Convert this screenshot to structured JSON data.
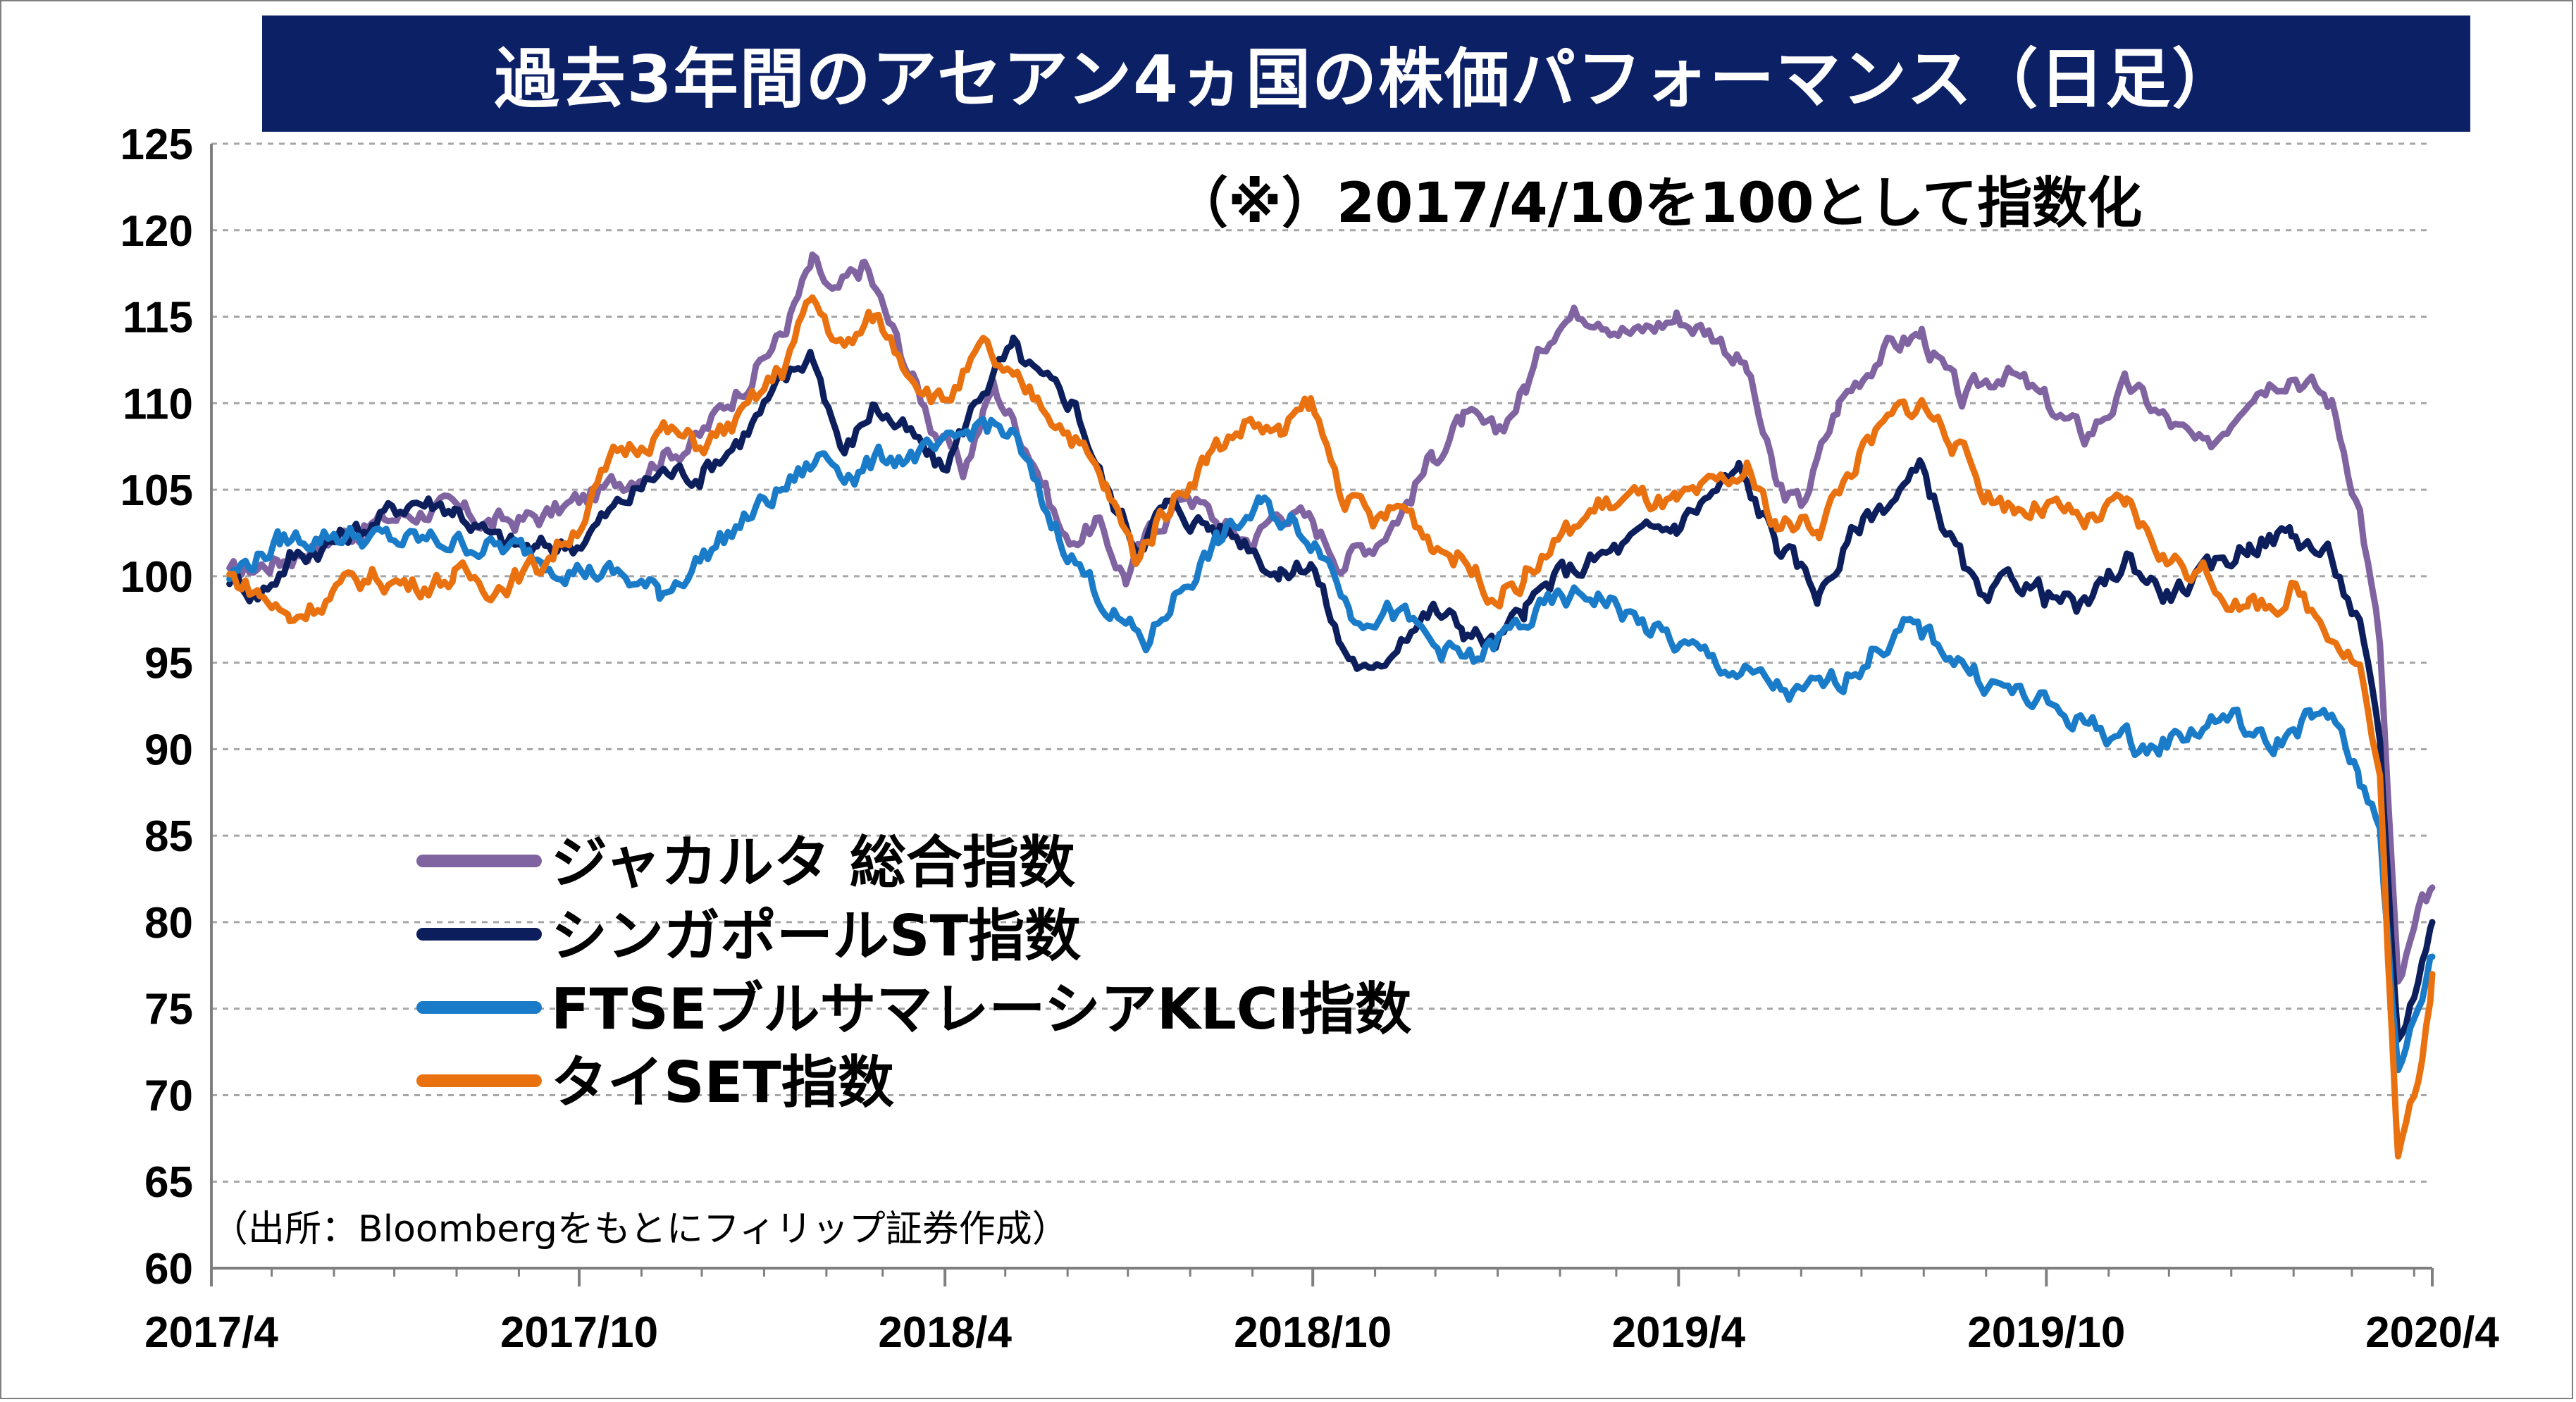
{
  "chart_data": {
    "type": "line",
    "title": "過去3年間のアセアン4ヵ国の株価パフォーマンス（日足）",
    "note": "（※）2017/4/10を100として指数化",
    "source": "（出所：Bloombergをもとにフィリップ証券作成）",
    "x_range": [
      "2017/4",
      "2020/4"
    ],
    "x_ticks": [
      "2017/4",
      "2017/10",
      "2018/4",
      "2018/10",
      "2019/4",
      "2019/10",
      "2020/4"
    ],
    "ylim": [
      60,
      125
    ],
    "y_ticks": [
      60,
      65,
      70,
      75,
      80,
      85,
      90,
      95,
      100,
      105,
      110,
      115,
      120,
      125
    ],
    "grid": "horizontal dashed",
    "legend_position": "lower-left",
    "series": [
      {
        "name": "ジャカルタ 総合指数",
        "color": "#8064a2",
        "points": [
          [
            "2017/4/10",
            100
          ],
          [
            "2017/5/5",
            101
          ],
          [
            "2017/5/25",
            102
          ],
          [
            "2017/6/20",
            103
          ],
          [
            "2017/7/20",
            104
          ],
          [
            "2017/8/20",
            103
          ],
          [
            "2017/9/15",
            103.5
          ],
          [
            "2017/10/15",
            105
          ],
          [
            "2017/11/10",
            107
          ],
          [
            "2017/11/30",
            108
          ],
          [
            "2017/12/20",
            111
          ],
          [
            "2018/1/10",
            114
          ],
          [
            "2018/1/25",
            118
          ],
          [
            "2018/2/5",
            116
          ],
          [
            "2018/2/20",
            118
          ],
          [
            "2018/3/10",
            113
          ],
          [
            "2018/3/25",
            109
          ],
          [
            "2018/4/10",
            106
          ],
          [
            "2018/4/25",
            111
          ],
          [
            "2018/5/15",
            107
          ],
          [
            "2018/5/31",
            102
          ],
          [
            "2018/6/15",
            103
          ],
          [
            "2018/6/30",
            100
          ],
          [
            "2018/7/15",
            103
          ],
          [
            "2018/7/31",
            105
          ],
          [
            "2018/8/15",
            103
          ],
          [
            "2018/9/1",
            102
          ],
          [
            "2018/9/15",
            104
          ],
          [
            "2018/10/1",
            103
          ],
          [
            "2018/10/15",
            101
          ],
          [
            "2018/10/31",
            102
          ],
          [
            "2018/11/15",
            104
          ],
          [
            "2018/11/30",
            107
          ],
          [
            "2018/12/15",
            109
          ],
          [
            "2018/12/31",
            108
          ],
          [
            "2019/1/15",
            111
          ],
          [
            "2019/1/31",
            115
          ],
          [
            "2019/2/20",
            115.5
          ],
          [
            "2019/3/10",
            114
          ],
          [
            "2019/3/31",
            115
          ],
          [
            "2019/4/20",
            114
          ],
          [
            "2019/5/5",
            112
          ],
          [
            "2019/5/20",
            105
          ],
          [
            "2019/6/1",
            104
          ],
          [
            "2019/6/20",
            110
          ],
          [
            "2019/7/10",
            113
          ],
          [
            "2019/7/31",
            114
          ],
          [
            "2019/8/20",
            110
          ],
          [
            "2019/9/10",
            112
          ],
          [
            "2019/9/30",
            110
          ],
          [
            "2019/10/20",
            108
          ],
          [
            "2019/11/10",
            111
          ],
          [
            "2019/11/30",
            109
          ],
          [
            "2019/12/20",
            107
          ],
          [
            "2020/1/10",
            111
          ],
          [
            "2020/1/31",
            112
          ],
          [
            "2020/2/20",
            110
          ],
          [
            "2020/3/5",
            104
          ],
          [
            "2020/3/15",
            96
          ],
          [
            "2020/3/24",
            76
          ],
          [
            "2020/4/3",
            80
          ],
          [
            "2020/4/10",
            82
          ]
        ]
      },
      {
        "name": "シンガポールST指数",
        "color": "#0c1f5c",
        "points": [
          [
            "2017/4/10",
            100
          ],
          [
            "2017/4/25",
            99
          ],
          [
            "2017/5/10",
            101
          ],
          [
            "2017/5/31",
            102
          ],
          [
            "2017/6/20",
            103
          ],
          [
            "2017/7/10",
            104.5
          ],
          [
            "2017/7/31",
            104
          ],
          [
            "2017/8/20",
            102
          ],
          [
            "2017/9/10",
            101.5
          ],
          [
            "2017/9/30",
            102
          ],
          [
            "2017/10/20",
            104
          ],
          [
            "2017/11/10",
            106
          ],
          [
            "2017/11/30",
            106
          ],
          [
            "2017/12/20",
            108
          ],
          [
            "2018/1/10",
            111
          ],
          [
            "2018/1/25",
            113
          ],
          [
            "2018/2/10",
            107
          ],
          [
            "2018/2/25",
            110
          ],
          [
            "2018/3/15",
            108
          ],
          [
            "2018/3/31",
            106
          ],
          [
            "2018/4/20",
            111
          ],
          [
            "2018/5/5",
            113
          ],
          [
            "2018/5/20",
            111
          ],
          [
            "2018/6/5",
            110
          ],
          [
            "2018/6/20",
            105
          ],
          [
            "2018/7/5",
            102
          ],
          [
            "2018/7/20",
            104
          ],
          [
            "2018/8/10",
            103
          ],
          [
            "2018/8/31",
            102
          ],
          [
            "2018/9/15",
            100
          ],
          [
            "2018/9/30",
            101
          ],
          [
            "2018/10/15",
            96
          ],
          [
            "2018/10/31",
            94
          ],
          [
            "2018/11/15",
            97
          ],
          [
            "2018/11/30",
            98
          ],
          [
            "2018/12/15",
            97
          ],
          [
            "2018/12/31",
            96
          ],
          [
            "2019/1/15",
            98
          ],
          [
            "2019/1/31",
            100
          ],
          [
            "2019/2/20",
            101
          ],
          [
            "2019/3/10",
            102
          ],
          [
            "2019/3/31",
            103
          ],
          [
            "2019/4/20",
            105
          ],
          [
            "2019/5/1",
            106
          ],
          [
            "2019/5/20",
            102
          ],
          [
            "2019/6/10",
            99
          ],
          [
            "2019/6/30",
            103
          ],
          [
            "2019/7/20",
            105
          ],
          [
            "2019/7/31",
            106
          ],
          [
            "2019/8/15",
            102
          ],
          [
            "2019/8/31",
            98
          ],
          [
            "2019/9/15",
            100
          ],
          [
            "2019/9/30",
            99
          ],
          [
            "2019/10/20",
            98
          ],
          [
            "2019/11/10",
            101
          ],
          [
            "2019/11/30",
            99
          ],
          [
            "2019/12/20",
            100
          ],
          [
            "2020/1/10",
            102
          ],
          [
            "2020/1/31",
            102.5
          ],
          [
            "2020/2/20",
            101
          ],
          [
            "2020/3/5",
            97
          ],
          [
            "2020/3/15",
            90
          ],
          [
            "2020/3/24",
            73
          ],
          [
            "2020/4/3",
            77
          ],
          [
            "2020/4/10",
            80
          ]
        ]
      },
      {
        "name": "FTSEブルサマレーシアKLCI指数",
        "color": "#1a7cc9",
        "points": [
          [
            "2017/4/10",
            100
          ],
          [
            "2017/5/5",
            102
          ],
          [
            "2017/6/1",
            102.5
          ],
          [
            "2017/7/1",
            102
          ],
          [
            "2017/7/31",
            102
          ],
          [
            "2017/8/31",
            101.5
          ],
          [
            "2017/9/30",
            100.5
          ],
          [
            "2017/10/20",
            100
          ],
          [
            "2017/11/10",
            99
          ],
          [
            "2017/11/30",
            101
          ],
          [
            "2017/12/20",
            103
          ],
          [
            "2018/1/10",
            105
          ],
          [
            "2018/1/31",
            107
          ],
          [
            "2018/2/15",
            106
          ],
          [
            "2018/3/5",
            107
          ],
          [
            "2018/3/31",
            107
          ],
          [
            "2018/4/20",
            109
          ],
          [
            "2018/5/5",
            108
          ],
          [
            "2018/5/20",
            104
          ],
          [
            "2018/6/10",
            100
          ],
          [
            "2018/6/30",
            97
          ],
          [
            "2018/7/10",
            96
          ],
          [
            "2018/7/25",
            99
          ],
          [
            "2018/8/15",
            102
          ],
          [
            "2018/9/5",
            104
          ],
          [
            "2018/9/20",
            103
          ],
          [
            "2018/10/5",
            102
          ],
          [
            "2018/10/20",
            98
          ],
          [
            "2018/11/10",
            98
          ],
          [
            "2018/11/30",
            96
          ],
          [
            "2018/12/20",
            95
          ],
          [
            "2019/1/10",
            97
          ],
          [
            "2019/1/31",
            98.5
          ],
          [
            "2019/2/20",
            99
          ],
          [
            "2019/3/10",
            97.5
          ],
          [
            "2019/3/31",
            96
          ],
          [
            "2019/4/20",
            95
          ],
          [
            "2019/5/10",
            94
          ],
          [
            "2019/5/31",
            93
          ],
          [
            "2019/6/20",
            94
          ],
          [
            "2019/7/10",
            96
          ],
          [
            "2019/7/25",
            97
          ],
          [
            "2019/8/10",
            96
          ],
          [
            "2019/8/31",
            94
          ],
          [
            "2019/9/20",
            93
          ],
          [
            "2019/10/10",
            92
          ],
          [
            "2019/10/31",
            91
          ],
          [
            "2019/11/20",
            90
          ],
          [
            "2019/12/10",
            91
          ],
          [
            "2019/12/31",
            92
          ],
          [
            "2020/1/20",
            90
          ],
          [
            "2020/2/10",
            92
          ],
          [
            "2020/2/25",
            91
          ],
          [
            "2020/3/5",
            88
          ],
          [
            "2020/3/15",
            86
          ],
          [
            "2020/3/24",
            71
          ],
          [
            "2020/4/3",
            75
          ],
          [
            "2020/4/10",
            78
          ]
        ]
      },
      {
        "name": "タイSET指数",
        "color": "#e9710f",
        "points": [
          [
            "2017/4/10",
            100
          ],
          [
            "2017/4/25",
            99
          ],
          [
            "2017/5/10",
            97.5
          ],
          [
            "2017/5/31",
            99
          ],
          [
            "2017/6/20",
            100
          ],
          [
            "2017/7/10",
            99.5
          ],
          [
            "2017/7/31",
            100
          ],
          [
            "2017/8/20",
            99.5
          ],
          [
            "2017/9/10",
            100.5
          ],
          [
            "2017/9/30",
            103
          ],
          [
            "2017/10/20",
            107
          ],
          [
            "2017/11/10",
            108.5
          ],
          [
            "2017/11/30",
            107.5
          ],
          [
            "2017/12/20",
            109
          ],
          [
            "2018/1/10",
            112
          ],
          [
            "2018/1/25",
            116
          ],
          [
            "2018/2/10",
            113
          ],
          [
            "2018/2/25",
            115
          ],
          [
            "2018/3/15",
            112
          ],
          [
            "2018/3/31",
            110
          ],
          [
            "2018/4/20",
            113
          ],
          [
            "2018/5/5",
            111
          ],
          [
            "2018/5/20",
            110
          ],
          [
            "2018/6/5",
            108
          ],
          [
            "2018/6/20",
            105
          ],
          [
            "2018/7/5",
            101
          ],
          [
            "2018/7/20",
            104
          ],
          [
            "2018/8/10",
            107
          ],
          [
            "2018/8/31",
            109
          ],
          [
            "2018/9/15",
            108
          ],
          [
            "2018/9/30",
            110
          ],
          [
            "2018/10/15",
            105
          ],
          [
            "2018/10/31",
            103
          ],
          [
            "2018/11/15",
            104
          ],
          [
            "2018/11/30",
            102
          ],
          [
            "2018/12/15",
            101
          ],
          [
            "2018/12/31",
            99
          ],
          [
            "2019/1/15",
            100
          ],
          [
            "2019/1/31",
            102
          ],
          [
            "2019/2/20",
            104
          ],
          [
            "2019/3/10",
            104.5
          ],
          [
            "2019/3/31",
            104
          ],
          [
            "2019/4/20",
            105
          ],
          [
            "2019/5/5",
            106
          ],
          [
            "2019/5/20",
            103
          ],
          [
            "2019/6/10",
            103
          ],
          [
            "2019/6/30",
            107
          ],
          [
            "2019/7/20",
            109.5
          ],
          [
            "2019/7/31",
            110
          ],
          [
            "2019/8/15",
            108
          ],
          [
            "2019/8/31",
            105
          ],
          [
            "2019/9/15",
            104
          ],
          [
            "2019/9/30",
            104
          ],
          [
            "2019/10/20",
            103
          ],
          [
            "2019/11/10",
            104
          ],
          [
            "2019/11/30",
            101
          ],
          [
            "2019/12/20",
            100
          ],
          [
            "2020/1/10",
            98
          ],
          [
            "2020/1/31",
            99
          ],
          [
            "2020/2/20",
            97
          ],
          [
            "2020/3/5",
            95
          ],
          [
            "2020/3/15",
            88
          ],
          [
            "2020/3/24",
            66
          ],
          [
            "2020/4/3",
            71
          ],
          [
            "2020/4/10",
            77
          ]
        ]
      }
    ]
  }
}
